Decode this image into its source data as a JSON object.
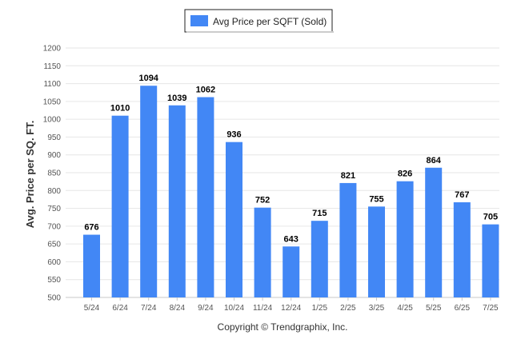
{
  "chart_data": {
    "type": "bar",
    "categories": [
      "5/24",
      "6/24",
      "7/24",
      "8/24",
      "9/24",
      "10/24",
      "11/24",
      "12/24",
      "1/25",
      "2/25",
      "3/25",
      "4/25",
      "5/25",
      "6/25",
      "7/25"
    ],
    "series": [
      {
        "name": "Avg Price per SQFT (Sold)",
        "values": [
          676,
          1010,
          1094,
          1039,
          1062,
          936,
          752,
          643,
          715,
          821,
          755,
          826,
          864,
          767,
          705
        ]
      }
    ],
    "ylabel": "Avg. Price per SQ. FT.",
    "xlabel": "",
    "ylim": [
      500,
      1200
    ],
    "yticks": [
      500,
      550,
      600,
      650,
      700,
      750,
      800,
      850,
      900,
      950,
      1000,
      1050,
      1100,
      1150,
      1200
    ],
    "grid": true,
    "legend_position": "top-center",
    "bar_color": "#4287f5",
    "footer": "Copyright © Trendgraphix, Inc."
  }
}
